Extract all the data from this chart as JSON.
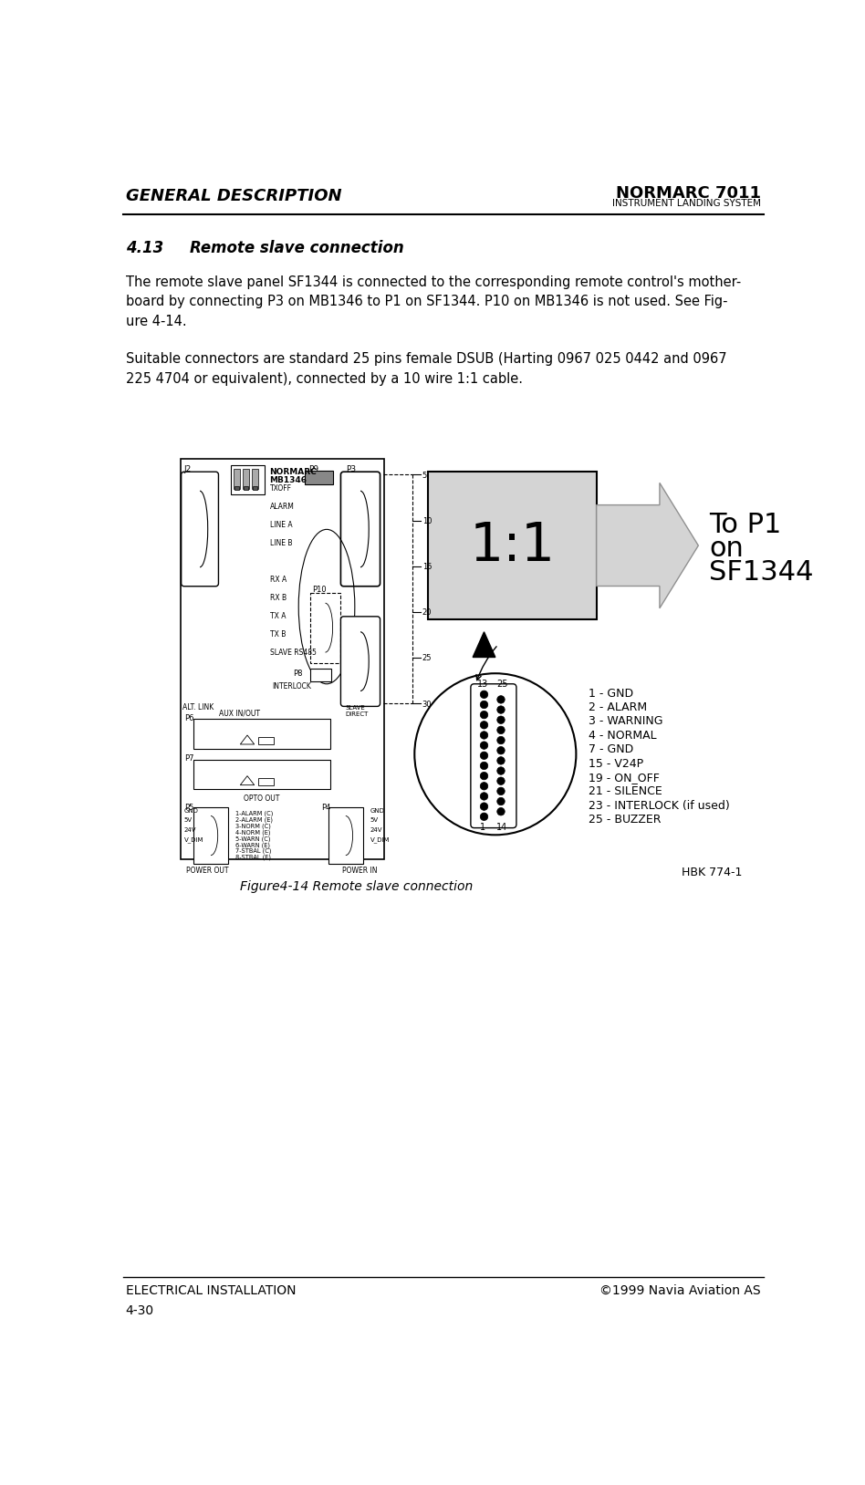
{
  "title_left": "GENERAL DESCRIPTION",
  "title_right": "NORMARC 7011",
  "subtitle_right": "INSTRUMENT LANDING SYSTEM",
  "footer_left": "ELECTRICAL INSTALLATION",
  "footer_right": "©1999 Navia Aviation AS",
  "footer_page": "4-30",
  "section_title": "4.13     Remote slave connection",
  "para1": "The remote slave panel SF1344 is connected to the corresponding remote control's mother-\nboard by connecting P3 on MB1346 to P1 on SF1344. P10 on MB1346 is not used. See Fig-\nure 4-14.",
  "para2": "Suitable connectors are standard 25 pins female DSUB (Harting 0967 025 0442 and 0967\n225 4704 or equivalent), connected by a 10 wire 1:1 cable.",
  "fig_caption": "Figure4-14 Remote slave connection",
  "hbk_label": "HBK 774-1",
  "bg_color": "#ffffff",
  "text_color": "#000000",
  "gray_box": "#d4d4d4",
  "light_gray": "#e8e8e8",
  "dark_gray": "#888888"
}
